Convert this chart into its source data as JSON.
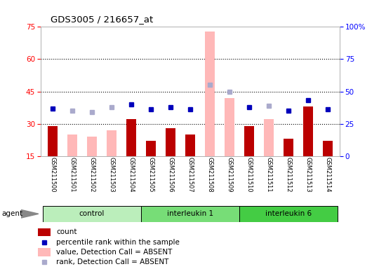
{
  "title": "GDS3005 / 216657_at",
  "samples": [
    "GSM211500",
    "GSM211501",
    "GSM211502",
    "GSM211503",
    "GSM211504",
    "GSM211505",
    "GSM211506",
    "GSM211507",
    "GSM211508",
    "GSM211509",
    "GSM211510",
    "GSM211511",
    "GSM211512",
    "GSM211513",
    "GSM211514"
  ],
  "count_present": [
    29,
    null,
    null,
    null,
    32,
    22,
    28,
    25,
    null,
    null,
    29,
    null,
    23,
    38,
    22
  ],
  "value_absent": [
    null,
    25,
    24,
    27,
    null,
    null,
    null,
    null,
    73,
    42,
    null,
    32,
    null,
    null,
    null
  ],
  "rank_present": [
    37,
    null,
    null,
    null,
    40,
    36,
    38,
    36,
    null,
    null,
    38,
    null,
    35,
    43,
    36
  ],
  "rank_absent": [
    null,
    35,
    34,
    38,
    null,
    null,
    null,
    null,
    55,
    50,
    null,
    39,
    null,
    null,
    null
  ],
  "left_ylim": [
    15,
    75
  ],
  "right_ylim": [
    0,
    100
  ],
  "left_yticks": [
    15,
    30,
    45,
    60,
    75
  ],
  "right_yticks": [
    0,
    25,
    50,
    75,
    100
  ],
  "hlines": [
    30,
    45,
    60
  ],
  "bar_color_present": "#bb0000",
  "bar_color_absent": "#ffb8b8",
  "dot_color_present": "#0000bb",
  "dot_color_absent": "#aaaacc",
  "plot_bg": "#ffffff",
  "xtick_bg": "#cccccc",
  "groups": [
    "control",
    "interleukin 1",
    "interleukin 6"
  ],
  "group_ranges": [
    [
      0,
      4
    ],
    [
      5,
      9
    ],
    [
      10,
      14
    ]
  ],
  "group_colors": [
    "#bbeebb",
    "#77dd77",
    "#44cc44"
  ],
  "legend_items": [
    {
      "color": "#bb0000",
      "type": "bar",
      "label": "count"
    },
    {
      "color": "#0000bb",
      "type": "dot",
      "label": "percentile rank within the sample"
    },
    {
      "color": "#ffb8b8",
      "type": "bar",
      "label": "value, Detection Call = ABSENT"
    },
    {
      "color": "#aaaacc",
      "type": "dot",
      "label": "rank, Detection Call = ABSENT"
    }
  ]
}
